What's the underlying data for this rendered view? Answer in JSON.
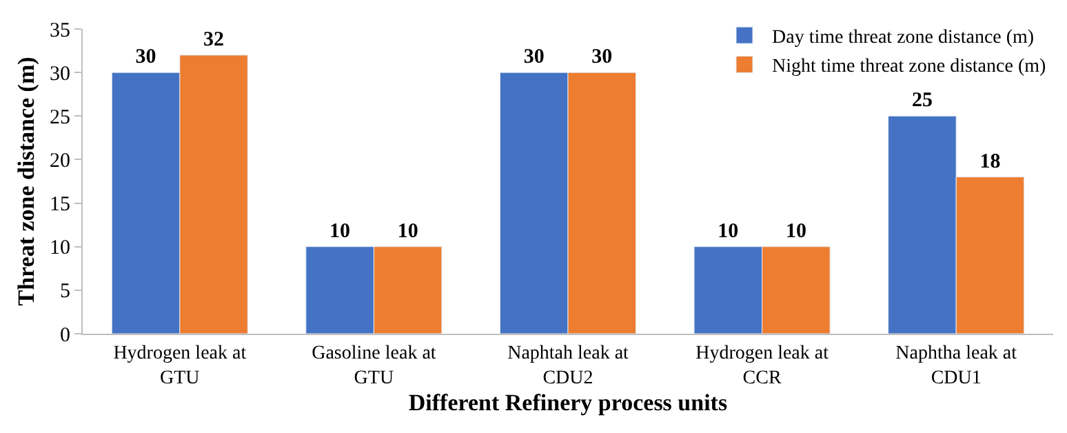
{
  "chart_data": {
    "type": "bar",
    "xlabel": "Different Refinery process units",
    "ylabel": "Threat zone distance (m)",
    "categories": [
      "Hydrogen leak at GTU",
      "Gasoline leak at GTU",
      "Naphtah leak at CDU2",
      "Hydrogen leak at CCR",
      "Naphtha leak at CDU1"
    ],
    "series": [
      {
        "name": "Day time threat zone distance (m)",
        "color": "#4472c4",
        "values": [
          30,
          10,
          30,
          10,
          25
        ]
      },
      {
        "name": "Night time threat zone distance (m)",
        "color": "#ed7d31",
        "values": [
          32,
          10,
          30,
          10,
          18
        ]
      }
    ],
    "ylim": [
      0,
      35
    ],
    "yticks": [
      0,
      5,
      10,
      15,
      20,
      25,
      30,
      35
    ],
    "data_labels": true,
    "legend": "top right"
  }
}
